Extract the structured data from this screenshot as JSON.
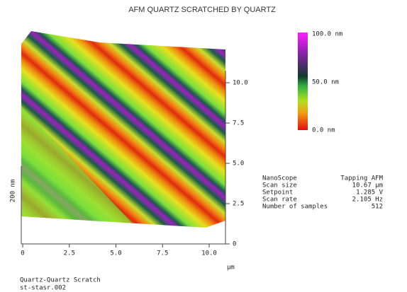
{
  "title": "AFM QUARTZ SCRATCHED BY QUARTZ",
  "color_scale": {
    "labels": [
      "100.0 nm",
      "50.0 nm",
      "0.0 nm"
    ]
  },
  "z_axis": {
    "label": "200 nm"
  },
  "right_axis": {
    "ticks": [
      "10.0",
      "7.5",
      "5.0",
      "2.5",
      "0"
    ]
  },
  "bottom_axis": {
    "ticks": [
      "0",
      "2.5",
      "5.0",
      "7.5",
      "10.0"
    ],
    "unit": "µm"
  },
  "info": {
    "rows": [
      [
        "NanoScope",
        "Tapping AFM"
      ],
      [
        "Scan size",
        "10.67 µm"
      ],
      [
        "Setpoint",
        "1.285 V"
      ],
      [
        "Scan rate",
        "2.105 Hz"
      ],
      [
        "Number of samples",
        "512"
      ]
    ]
  },
  "caption": {
    "lines": [
      "Quartz-Quartz Scratch",
      "st-stasr.002"
    ]
  }
}
